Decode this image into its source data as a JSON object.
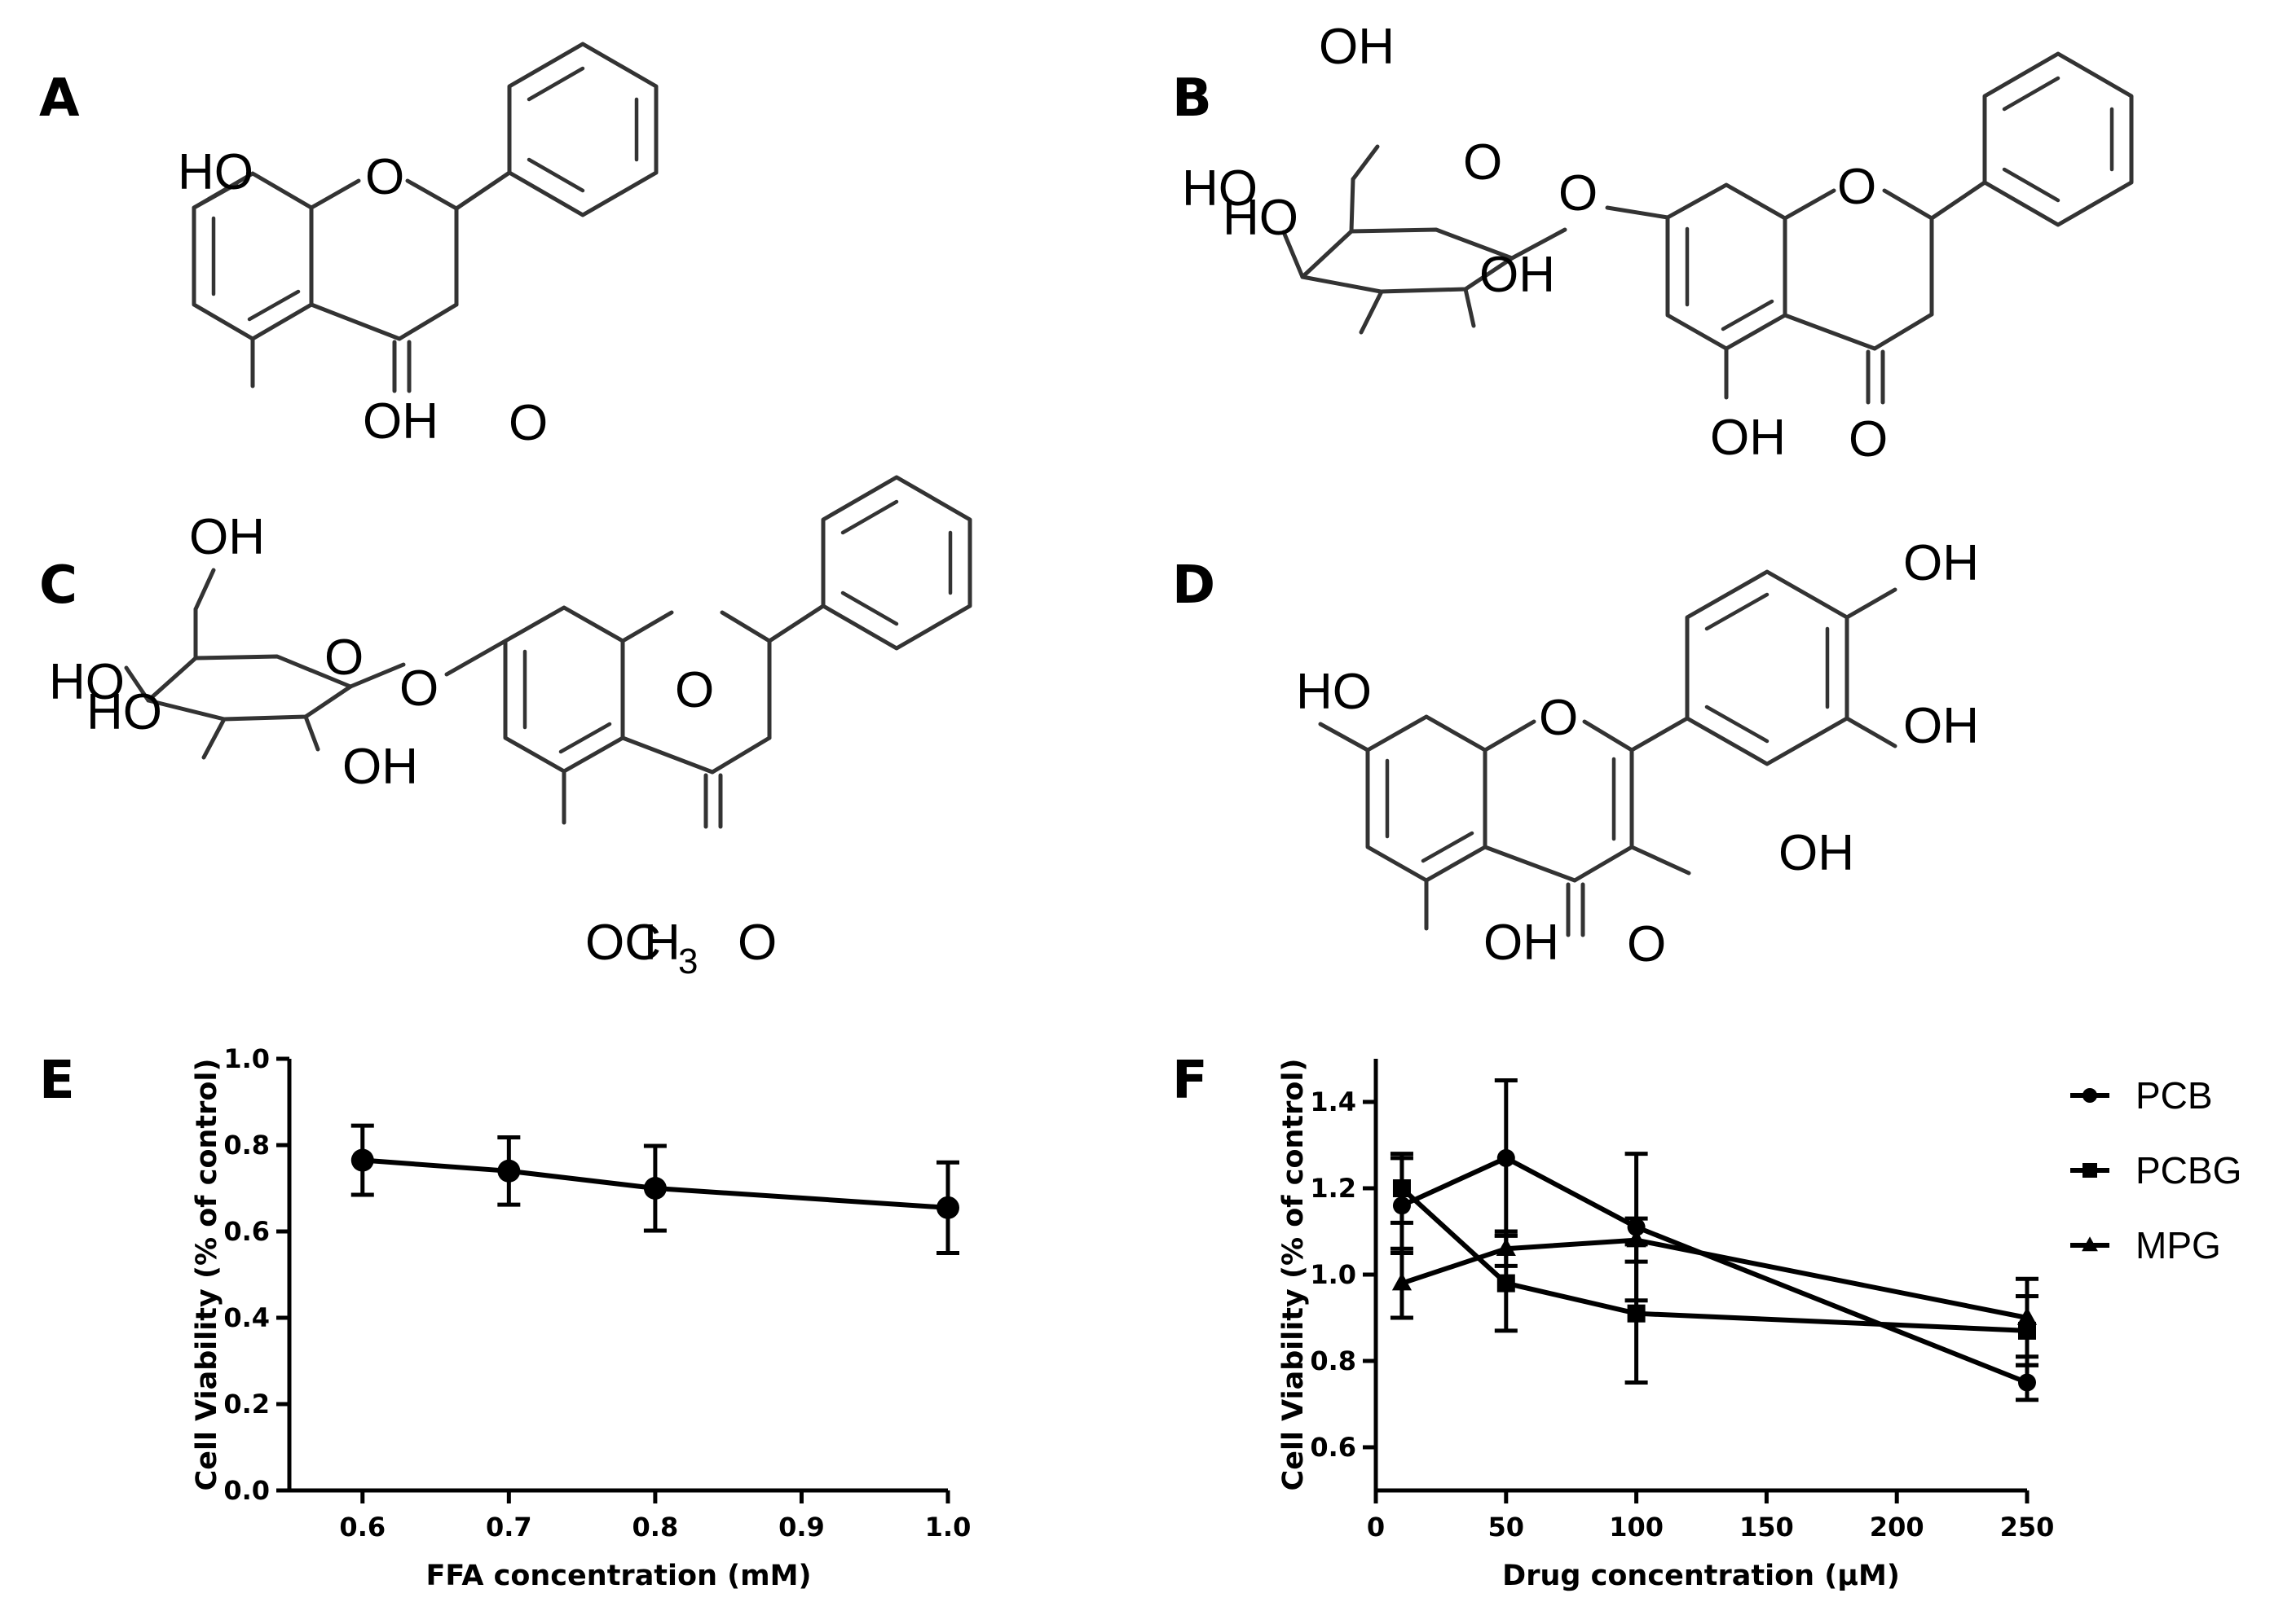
{
  "panels": {
    "A": "A",
    "B": "B",
    "C": "C",
    "D": "D",
    "E": "E",
    "F": "F"
  },
  "atoms": {
    "HO": "HO",
    "OH": "OH",
    "O": "O",
    "OC": "OC",
    "H3": "H",
    "three": "3"
  },
  "chart_data": [
    {
      "panel": "E",
      "type": "line",
      "title": "",
      "xlabel": "FFA concentration (mM)",
      "ylabel": "Cell Viability (% of control)",
      "xlim": [
        0.55,
        1.0
      ],
      "ylim": [
        0.0,
        1.0
      ],
      "xticks": [
        0.6,
        0.7,
        0.8,
        0.9,
        1.0
      ],
      "xtick_labels": [
        "0.6",
        "0.7",
        "0.8",
        "0.9",
        "1.0"
      ],
      "yticks": [
        0.0,
        0.2,
        0.4,
        0.6,
        0.8,
        1.0
      ],
      "ytick_labels": [
        "0.0",
        "0.2",
        "0.4",
        "0.6",
        "0.8",
        "1.0"
      ],
      "series": [
        {
          "x": [
            0.6,
            0.7,
            0.8,
            1.0
          ],
          "values": [
            0.765,
            0.74,
            0.7,
            0.655
          ],
          "error": [
            0.08,
            0.078,
            0.098,
            0.105
          ],
          "marker": "circle"
        }
      ]
    },
    {
      "panel": "F",
      "type": "line",
      "title": "",
      "xlabel": "Drug concentration (μM)",
      "ylabel": "Cell Viability (% of control)",
      "xlim": [
        0,
        250
      ],
      "ylim": [
        0.5,
        1.5
      ],
      "xticks": [
        0,
        50,
        100,
        150,
        200,
        250
      ],
      "xtick_labels": [
        "0",
        "50",
        "100",
        "150",
        "200",
        "250"
      ],
      "yticks": [
        0.6,
        0.8,
        1.0,
        1.2,
        1.4
      ],
      "ytick_labels": [
        "0.6",
        "0.8",
        "1.0",
        "1.2",
        "1.4"
      ],
      "legend_position": "right",
      "series": [
        {
          "name": "PCB",
          "x": [
            10,
            50,
            100,
            250
          ],
          "values": [
            1.16,
            1.27,
            1.11,
            0.75
          ],
          "error": [
            0.11,
            0.18,
            0.17,
            0.04
          ],
          "marker": "circle"
        },
        {
          "name": "PCBG",
          "x": [
            10,
            50,
            100,
            250
          ],
          "values": [
            1.2,
            0.98,
            0.91,
            0.87
          ],
          "error": [
            0.08,
            0.11,
            0.16,
            0.08
          ],
          "marker": "square"
        },
        {
          "name": "MPG",
          "x": [
            10,
            50,
            100,
            250
          ],
          "values": [
            0.98,
            1.06,
            1.08,
            0.9
          ],
          "error": [
            0.08,
            0.04,
            0.05,
            0.09
          ],
          "marker": "triangle"
        }
      ]
    }
  ]
}
